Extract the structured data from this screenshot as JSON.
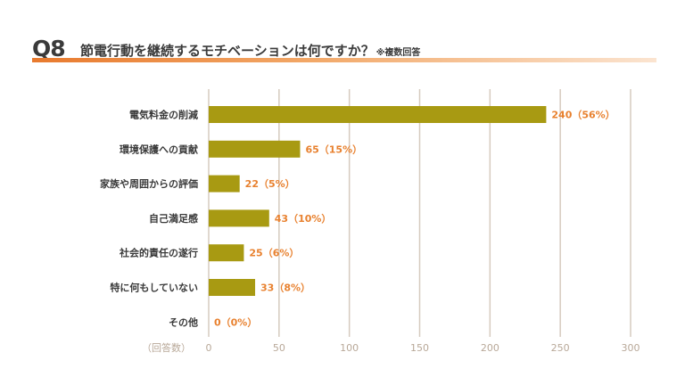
{
  "header": {
    "number": "Q8",
    "question": "節電行動を継続するモチベーションは何ですか？",
    "note": "※複数回答"
  },
  "chart_data": {
    "type": "bar",
    "orientation": "horizontal",
    "categories": [
      "電気料金の削減",
      "環境保護への貢献",
      "家族や周囲からの評価",
      "自己満足感",
      "社会的責任の遂行",
      "特に何もしていない",
      "その他"
    ],
    "values": [
      240,
      65,
      22,
      43,
      25,
      33,
      0
    ],
    "data_labels": [
      "240（56%）",
      "65（15%）",
      "22（5%）",
      "43（10%）",
      "25（6%）",
      "33（8%）",
      "0（0%）"
    ],
    "xlim": [
      0,
      300
    ],
    "ticks": [
      0,
      50,
      100,
      150,
      200,
      250,
      300
    ],
    "xlabel": "（回答数）",
    "grid": true,
    "colors": {
      "bar": "#a89a12",
      "data_label": "#e8812f",
      "grid": "#d6cbbf",
      "tick": "#b8a898",
      "accent": "#e87a2e"
    }
  }
}
